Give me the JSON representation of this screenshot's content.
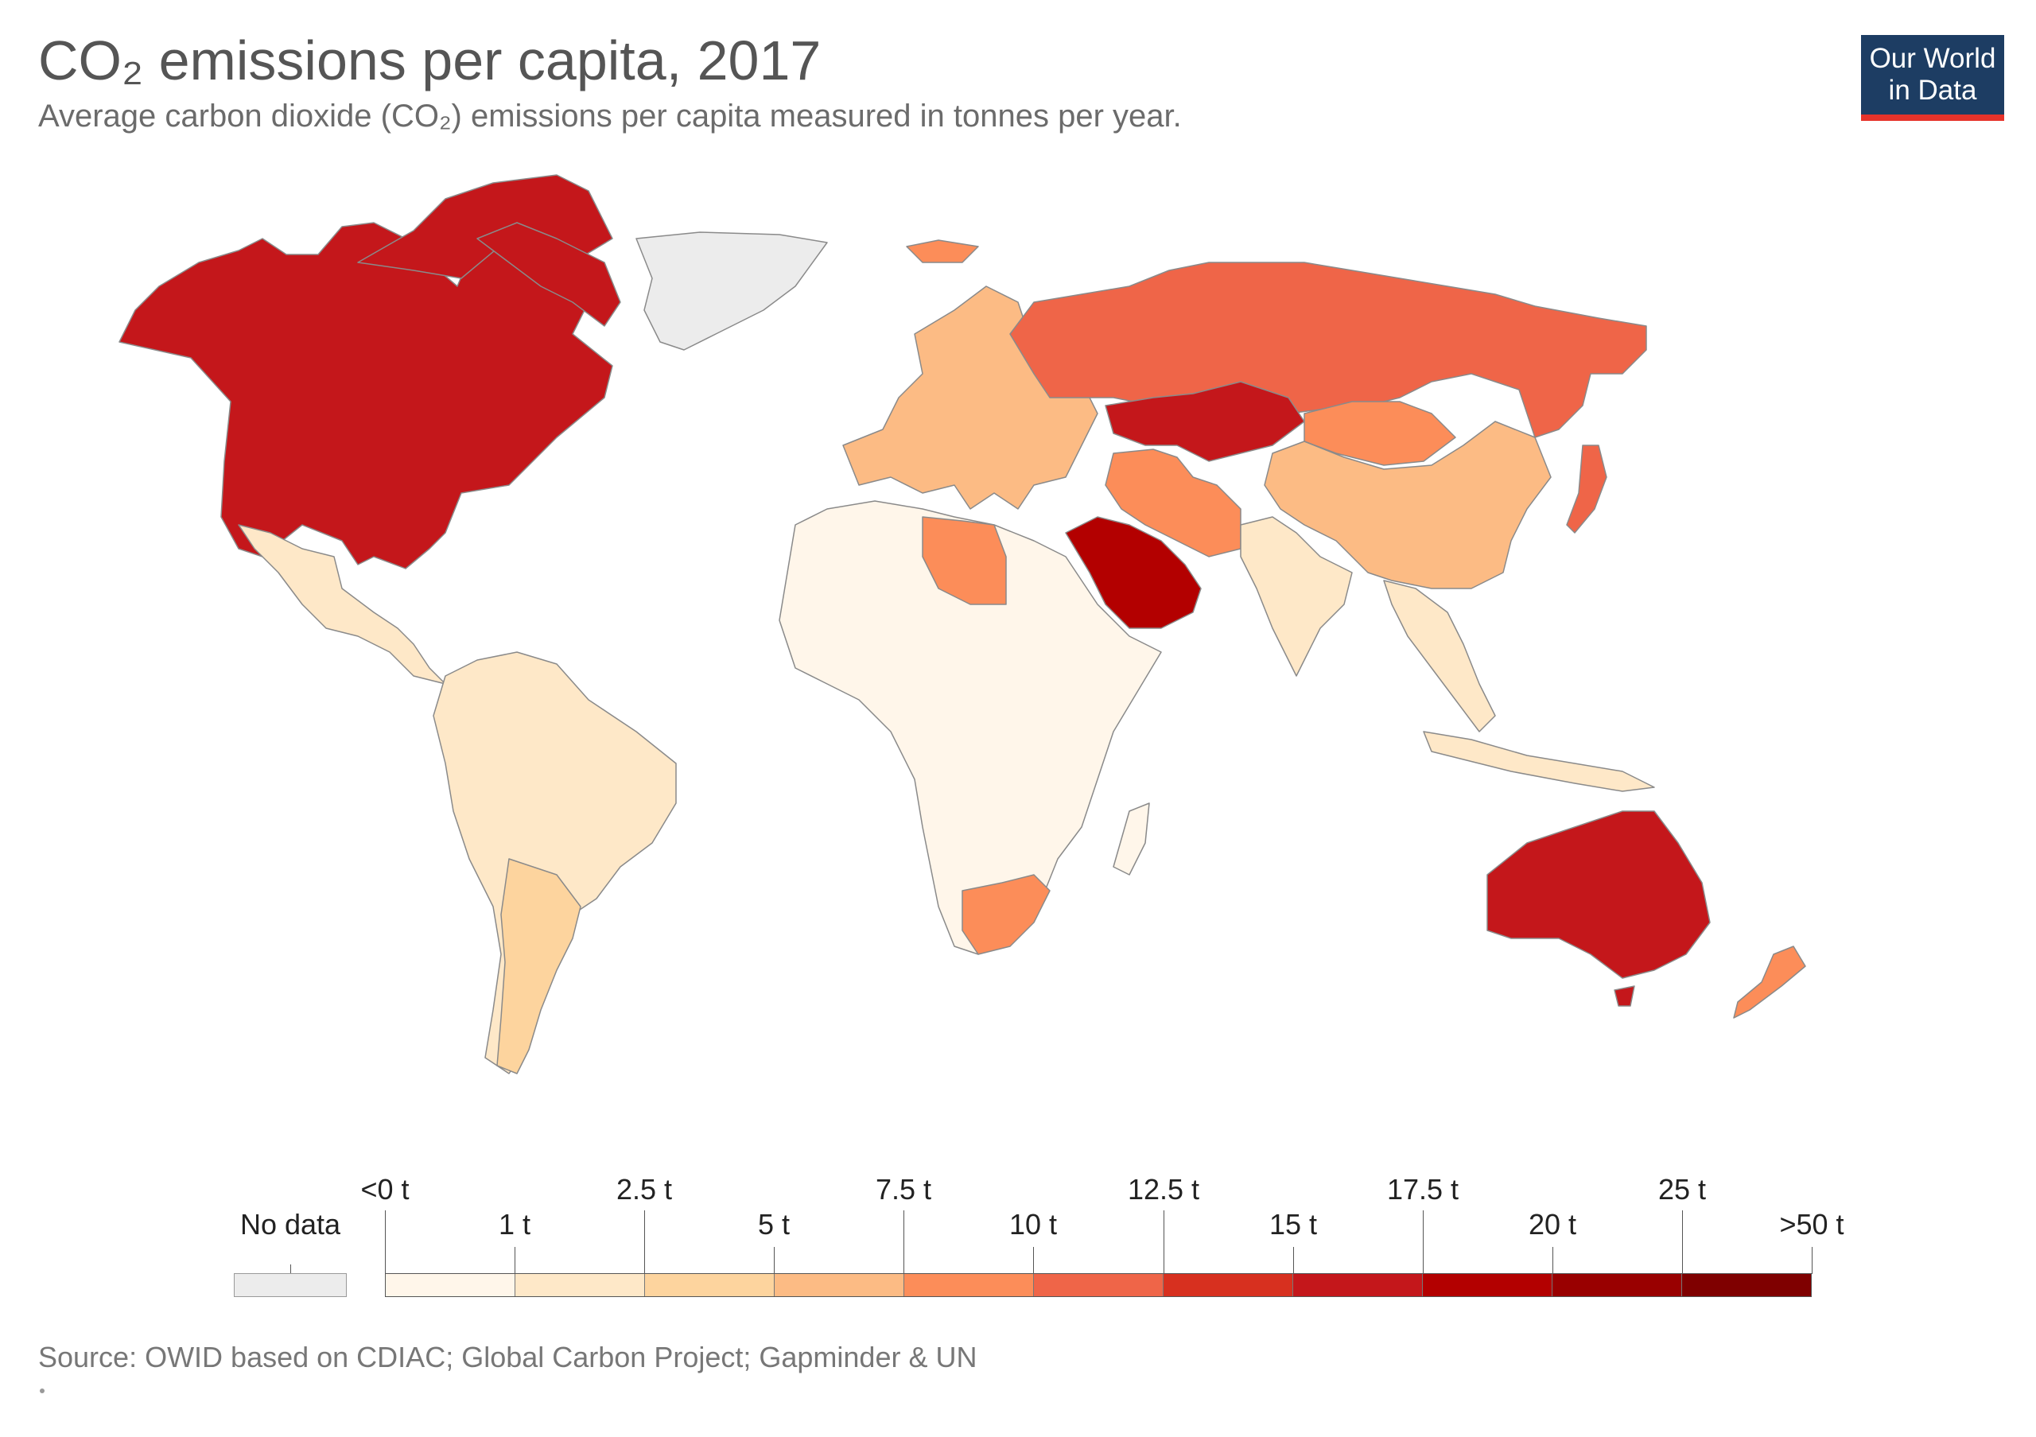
{
  "header": {
    "title": "CO₂ emissions per capita, 2017",
    "subtitle": "Average carbon dioxide (CO₂) emissions per capita measured in tonnes per year."
  },
  "logo": {
    "line1": "Our World",
    "line2": "in Data",
    "bg_color": "#1d3d63",
    "accent_color": "#e6332a"
  },
  "legend": {
    "no_data_label": "No data",
    "no_data_color": "#ececec",
    "bins": [
      {
        "color": "#fff6ea"
      },
      {
        "color": "#fee8c8"
      },
      {
        "color": "#fdd49e"
      },
      {
        "color": "#fcbb84"
      },
      {
        "color": "#fc8d59"
      },
      {
        "color": "#ef6548"
      },
      {
        "color": "#d7301f"
      },
      {
        "color": "#c4171b"
      },
      {
        "color": "#b30000"
      },
      {
        "color": "#990000"
      },
      {
        "color": "#7f0000"
      }
    ],
    "upper_labels": [
      "<0 t",
      "2.5 t",
      "7.5 t",
      "12.5 t",
      "17.5 t",
      "25 t"
    ],
    "lower_labels": [
      "1 t",
      "5 t",
      "10 t",
      "15 t",
      "20 t",
      ">50 t"
    ]
  },
  "colors": {
    "ocean": "#ffffff",
    "border": "#8a8a8a",
    "north_america": "#c4171b",
    "greenland": "#ececec",
    "russia": "#ef6548",
    "kazakhstan": "#c4171b",
    "china": "#fcbb84",
    "mongolia": "#fc8d59",
    "saudi_arabia": "#b30000",
    "middle_east": "#fc8d59",
    "europe": "#fcbb84",
    "south_america": "#fee8c8",
    "argentina": "#fdd49e",
    "africa": "#fff6ea",
    "libya": "#fc8d59",
    "south_africa": "#fc8d59",
    "india": "#fee8c8",
    "southeast_asia": "#fee8c8",
    "australia": "#c4171b",
    "new_zealand": "#fc8d59",
    "japan": "#ef6548",
    "iceland": "#fc8d59"
  },
  "footer": {
    "source": "Source: OWID based on CDIAC; Global Carbon Project; Gapminder & UN"
  }
}
